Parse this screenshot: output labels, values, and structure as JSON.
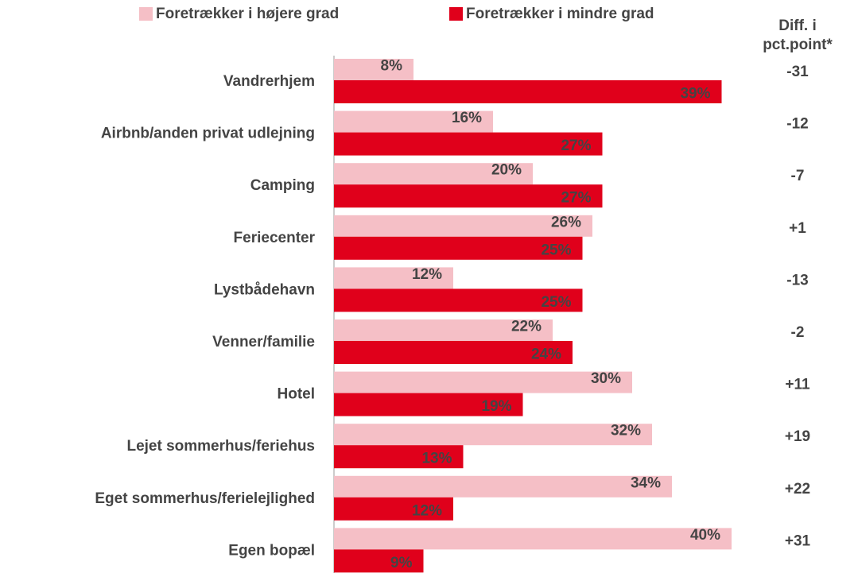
{
  "chart_data": {
    "type": "bar",
    "orientation": "horizontal",
    "categories": [
      "Vandrerhjem",
      "Airbnb/anden privat udlejning",
      "Camping",
      "Feriecenter",
      "Lystbådehavn",
      "Venner/familie",
      "Hotel",
      "Lejet sommerhus/feriehus",
      "Eget sommerhus/ferielejlighed",
      "Egen bopæl"
    ],
    "series": [
      {
        "name": "Foretrækker i højere grad",
        "color": "#f5bfc6",
        "label_color": "#444444",
        "values": [
          8,
          16,
          20,
          26,
          12,
          22,
          30,
          32,
          34,
          40
        ],
        "value_labels": [
          "8%",
          "16%",
          "20%",
          "26%",
          "12%",
          "22%",
          "30%",
          "32%",
          "34%",
          "40%"
        ]
      },
      {
        "name": "Foretrækker i mindre grad",
        "color": "#e0001b",
        "label_color": "#ffffff",
        "values": [
          39,
          27,
          27,
          25,
          25,
          24,
          19,
          13,
          12,
          9
        ],
        "value_labels": [
          "39%",
          "27%",
          "27%",
          "25%",
          "25%",
          "24%",
          "19%",
          "13%",
          "12%",
          "9%"
        ]
      }
    ],
    "xlim": [
      0,
      40
    ],
    "diff": {
      "title": [
        "Diff. i",
        "pct.point*"
      ],
      "values": [
        -31,
        -12,
        -7,
        1,
        -13,
        -2,
        11,
        19,
        22,
        31
      ],
      "value_labels": [
        "-31",
        "-12",
        "-7",
        "+1",
        "-13",
        "-2",
        "+11",
        "+19",
        "+22",
        "+31"
      ],
      "colors": [
        "#e0001b",
        "#e0001b",
        "#e0001b",
        "#333333",
        "#e0001b",
        "#333333",
        "#2a9d3a",
        "#2a9d3a",
        "#2a9d3a",
        "#2a9d3a"
      ]
    }
  }
}
